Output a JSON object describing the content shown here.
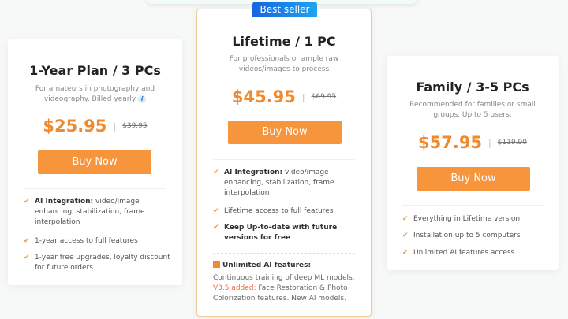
{
  "plans": [
    {
      "title": "1-Year Plan / 3 PCs",
      "desc": "For amateurs in photography and videography. Billed yearly",
      "price": "$25.95",
      "old_price": "$39.95",
      "button": "Buy Now",
      "features": [
        {
          "bold": "AI Integration:",
          "text": " video/image enhancing, stabilization, frame interpolation"
        },
        {
          "bold": "",
          "text": "1-year access to full features"
        },
        {
          "bold": "",
          "text": "1-year free upgrades, loyalty discount for future orders"
        }
      ]
    },
    {
      "badge": "Best seller",
      "title": "Lifetime / 1 PC",
      "desc": "For professionals or ample raw videos/images to process",
      "price": "$45.95",
      "old_price": "$69.95",
      "button": "Buy Now",
      "features": [
        {
          "bold": "AI Integration:",
          "text": " video/image enhancing, stabilization, frame interpolation"
        },
        {
          "bold": "",
          "text": "Lifetime access to full features"
        },
        {
          "bold": "Keep Up-to-date with future versions for free",
          "text": ""
        }
      ],
      "unlimited": {
        "heading": "Unlimited AI features:",
        "line1": "Continuous training of deep ML models.",
        "highlight": "V3.5 added:",
        "line2": " Face Restoration & Photo Colorization features. New AI models."
      }
    },
    {
      "title": "Family / 3-5 PCs",
      "desc": "Recommended for families or small groups. Up to 5 users.",
      "price": "$57.95",
      "old_price": "$119.90",
      "button": "Buy Now",
      "features": [
        {
          "bold": "",
          "text": "Everything in Lifetime version"
        },
        {
          "bold": "",
          "text": "Installation up to 5 computers"
        },
        {
          "bold": "",
          "text": "Unlimited AI features access"
        }
      ]
    }
  ],
  "colors": {
    "accent": "#f7953d",
    "price": "#f08a2c",
    "badge": "#1565e0"
  }
}
